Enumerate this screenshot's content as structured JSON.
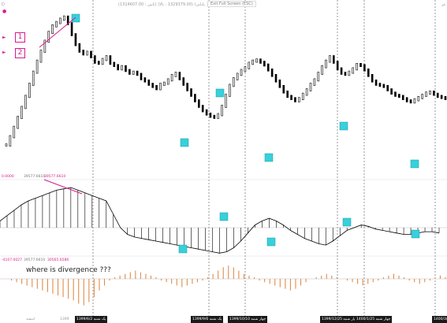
{
  "header": {
    "info_text": "(1314607.00 : پایین) (1329379.00 : بالا) (1319654.00 : پایانی)",
    "fullscreen_label": "Exit Full Screen (ESC)",
    "left_mark": "D",
    "right_mark": "عز"
  },
  "markers": {
    "one": "1",
    "two": "2"
  },
  "indicators": {
    "macd_values": {
      "a": "0.0000",
      "b": "39577.6610",
      "c": "39577.6610"
    },
    "hist_values": {
      "a": "-4107.0027",
      "b": "39577.6610",
      "c": "30565.6586"
    }
  },
  "annotation": "where is divergence ???",
  "dates": [
    "1399/6/2 یک شنبه",
    "1399/9/6 یک شنبه",
    "1399/10/10 چهار شنبه",
    "1399/12/25 چهار شنبه",
    "1400/1/25 چهار شنبه",
    "1400/3/"
  ],
  "axis_ticks": [
    "اسفند",
    "1399"
  ],
  "colors": {
    "price_line": "#000000",
    "macd_fill": "#000000",
    "hist_bar": "#e08c4a",
    "highlight": "#37d0dc",
    "trend_line": "#d81b8c",
    "vline": "#333333"
  },
  "price_series": [
    40,
    55,
    72,
    90,
    108,
    128,
    150,
    172,
    192,
    210,
    228,
    244,
    256,
    262,
    268,
    272,
    260,
    240,
    222,
    210,
    205,
    208,
    200,
    190,
    188,
    195,
    200,
    188,
    184,
    178,
    182,
    175,
    170,
    172,
    168,
    160,
    156,
    150,
    146,
    142,
    150,
    152,
    158,
    166,
    170,
    160,
    150,
    140,
    130,
    120,
    110,
    102,
    96,
    92,
    90,
    95,
    110,
    130,
    148,
    160,
    168,
    175,
    180,
    188,
    192,
    194,
    190,
    185,
    176,
    166,
    156,
    146,
    136,
    128,
    124,
    120,
    124,
    132,
    140,
    150,
    158,
    170,
    182,
    192,
    200,
    190,
    178,
    170,
    168,
    172,
    178,
    186,
    184,
    176,
    166,
    156,
    150,
    148,
    146,
    140,
    134,
    130,
    128,
    124,
    120,
    118,
    122,
    126,
    130,
    134,
    136,
    132,
    128,
    126,
    124
  ],
  "macd_series": [
    10,
    18,
    26,
    34,
    40,
    44,
    48,
    52,
    56,
    58,
    60,
    56,
    52,
    48,
    44,
    40,
    20,
    0,
    -10,
    -14,
    -16,
    -18,
    -20,
    -22,
    -24,
    -26,
    -28,
    -30,
    -32,
    -34,
    -36,
    -38,
    -36,
    -30,
    -20,
    -8,
    4,
    10,
    14,
    10,
    4,
    -4,
    -10,
    -16,
    -20,
    -24,
    -26,
    -20,
    -12,
    -4,
    0,
    4,
    2,
    -2,
    -4,
    -6,
    -8,
    -10,
    -10,
    -8,
    -6,
    -6,
    -8
  ],
  "hist_series": [
    0,
    -2,
    -4,
    -6,
    -8,
    -10,
    -12,
    -14,
    -16,
    -18,
    -20,
    -22,
    -24,
    -26,
    -30,
    -32,
    -28,
    -22,
    -14,
    -8,
    -2,
    2,
    4,
    6,
    8,
    10,
    8,
    6,
    4,
    2,
    -2,
    -4,
    -6,
    -8,
    -10,
    -8,
    -6,
    -4,
    -2,
    2,
    6,
    10,
    14,
    16,
    14,
    10,
    6,
    4,
    2,
    -2,
    -4,
    -6,
    -8,
    -10,
    -12,
    -14,
    -12,
    -8,
    -4,
    0,
    2,
    4,
    6,
    4,
    2,
    0,
    -2,
    -4,
    -6,
    -8,
    -6,
    -4,
    -2,
    2,
    4,
    6,
    4,
    2,
    -2,
    -4,
    -6,
    -4,
    -2,
    2,
    4,
    2
  ]
}
